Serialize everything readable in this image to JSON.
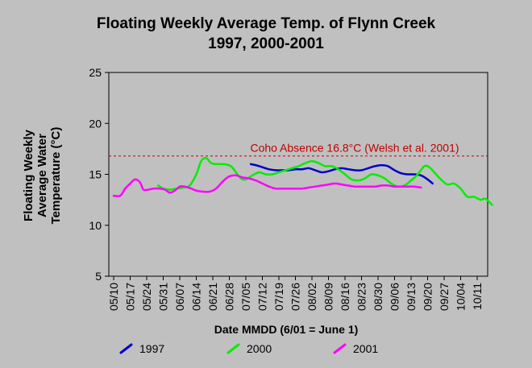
{
  "chart_data": {
    "type": "line",
    "title_line1": "Floating Weekly Average Temp. of Flynn Creek",
    "title_line2": "1997, 2000-2001",
    "ylabel_lines": [
      "Floating Weekly",
      "Average Water",
      "Temperature (°C)"
    ],
    "xlabel": "Date MMDD (6/01 = June 1)",
    "ylim": [
      5,
      25
    ],
    "yticks": [
      "5",
      "10",
      "15",
      "20",
      "25"
    ],
    "categories": [
      "05/10",
      "05/17",
      "05/24",
      "05/31",
      "06/07",
      "06/14",
      "06/21",
      "06/28",
      "07/05",
      "07/12",
      "07/19",
      "07/26",
      "08/02",
      "08/09",
      "08/16",
      "08/23",
      "08/30",
      "09/06",
      "09/13",
      "09/20",
      "09/27",
      "10/04",
      "10/11"
    ],
    "reference_line": {
      "value": 16.8,
      "label": "Coho Absence 16.8°C (Welsh et al. 2001)",
      "color": "#c00000"
    },
    "series": [
      {
        "name": "1997",
        "color": "#0000cc",
        "points": [
          [
            8.3,
            16.0
          ],
          [
            8.6,
            15.9
          ],
          [
            9.0,
            15.7
          ],
          [
            9.4,
            15.5
          ],
          [
            9.8,
            15.4
          ],
          [
            10.2,
            15.4
          ],
          [
            10.6,
            15.4
          ],
          [
            11.0,
            15.5
          ],
          [
            11.4,
            15.5
          ],
          [
            11.8,
            15.6
          ],
          [
            12.2,
            15.4
          ],
          [
            12.6,
            15.2
          ],
          [
            13.0,
            15.3
          ],
          [
            13.4,
            15.5
          ],
          [
            13.8,
            15.6
          ],
          [
            14.2,
            15.5
          ],
          [
            14.6,
            15.4
          ],
          [
            15.0,
            15.4
          ],
          [
            15.4,
            15.6
          ],
          [
            15.8,
            15.8
          ],
          [
            16.2,
            15.9
          ],
          [
            16.6,
            15.8
          ],
          [
            17.0,
            15.4
          ],
          [
            17.4,
            15.1
          ],
          [
            17.8,
            15.0
          ],
          [
            18.2,
            15.0
          ],
          [
            18.6,
            14.9
          ],
          [
            19.0,
            14.5
          ],
          [
            19.3,
            14.1
          ]
        ]
      },
      {
        "name": "2000",
        "color": "#00ee00",
        "points": [
          [
            2.7,
            13.9
          ],
          [
            3.0,
            13.6
          ],
          [
            3.4,
            13.5
          ],
          [
            3.8,
            13.6
          ],
          [
            4.2,
            13.7
          ],
          [
            4.6,
            13.9
          ],
          [
            5.0,
            15.0
          ],
          [
            5.3,
            16.3
          ],
          [
            5.6,
            16.6
          ],
          [
            5.9,
            16.1
          ],
          [
            6.3,
            16.0
          ],
          [
            6.7,
            16.0
          ],
          [
            7.1,
            15.8
          ],
          [
            7.4,
            15.2
          ],
          [
            7.7,
            14.6
          ],
          [
            8.0,
            14.5
          ],
          [
            8.4,
            14.9
          ],
          [
            8.8,
            15.2
          ],
          [
            9.2,
            15.0
          ],
          [
            9.6,
            15.0
          ],
          [
            10.0,
            15.2
          ],
          [
            10.4,
            15.4
          ],
          [
            10.8,
            15.6
          ],
          [
            11.2,
            15.8
          ],
          [
            11.6,
            16.1
          ],
          [
            12.0,
            16.3
          ],
          [
            12.4,
            16.1
          ],
          [
            12.8,
            15.8
          ],
          [
            13.2,
            15.8
          ],
          [
            13.6,
            15.5
          ],
          [
            14.0,
            15.0
          ],
          [
            14.4,
            14.5
          ],
          [
            14.8,
            14.4
          ],
          [
            15.2,
            14.6
          ],
          [
            15.6,
            15.0
          ],
          [
            16.0,
            14.9
          ],
          [
            16.4,
            14.6
          ],
          [
            16.8,
            14.1
          ],
          [
            17.2,
            13.8
          ],
          [
            17.6,
            13.9
          ],
          [
            18.0,
            14.4
          ],
          [
            18.4,
            15.0
          ],
          [
            18.8,
            15.8
          ],
          [
            19.1,
            15.7
          ],
          [
            19.4,
            15.2
          ],
          [
            19.8,
            14.5
          ],
          [
            20.2,
            14.0
          ],
          [
            20.6,
            14.1
          ],
          [
            21.0,
            13.6
          ],
          [
            21.4,
            12.8
          ],
          [
            21.8,
            12.8
          ],
          [
            22.2,
            12.5
          ],
          [
            22.5,
            12.6
          ],
          [
            22.9,
            12.0
          ]
        ]
      },
      {
        "name": "2001",
        "color": "#ff00ff",
        "points": [
          [
            0.0,
            12.9
          ],
          [
            0.4,
            12.9
          ],
          [
            0.7,
            13.6
          ],
          [
            1.0,
            14.1
          ],
          [
            1.3,
            14.5
          ],
          [
            1.6,
            14.2
          ],
          [
            1.8,
            13.5
          ],
          [
            2.1,
            13.5
          ],
          [
            2.4,
            13.6
          ],
          [
            2.8,
            13.6
          ],
          [
            3.1,
            13.5
          ],
          [
            3.4,
            13.2
          ],
          [
            3.7,
            13.4
          ],
          [
            4.0,
            13.8
          ],
          [
            4.3,
            13.8
          ],
          [
            4.7,
            13.6
          ],
          [
            5.0,
            13.4
          ],
          [
            5.4,
            13.3
          ],
          [
            5.8,
            13.3
          ],
          [
            6.2,
            13.6
          ],
          [
            6.6,
            14.3
          ],
          [
            7.0,
            14.8
          ],
          [
            7.4,
            14.9
          ],
          [
            7.8,
            14.7
          ],
          [
            8.2,
            14.6
          ],
          [
            8.6,
            14.4
          ],
          [
            9.0,
            14.1
          ],
          [
            9.4,
            13.8
          ],
          [
            9.8,
            13.6
          ],
          [
            10.2,
            13.6
          ],
          [
            10.6,
            13.6
          ],
          [
            11.0,
            13.6
          ],
          [
            11.4,
            13.6
          ],
          [
            11.8,
            13.7
          ],
          [
            12.2,
            13.8
          ],
          [
            12.6,
            13.9
          ],
          [
            13.0,
            14.0
          ],
          [
            13.4,
            14.1
          ],
          [
            13.8,
            14.0
          ],
          [
            14.2,
            13.9
          ],
          [
            14.6,
            13.8
          ],
          [
            15.0,
            13.8
          ],
          [
            15.4,
            13.8
          ],
          [
            15.8,
            13.8
          ],
          [
            16.2,
            13.9
          ],
          [
            16.6,
            13.9
          ],
          [
            17.0,
            13.8
          ],
          [
            17.4,
            13.8
          ],
          [
            17.8,
            13.8
          ],
          [
            18.2,
            13.8
          ],
          [
            18.6,
            13.7
          ]
        ]
      }
    ]
  }
}
